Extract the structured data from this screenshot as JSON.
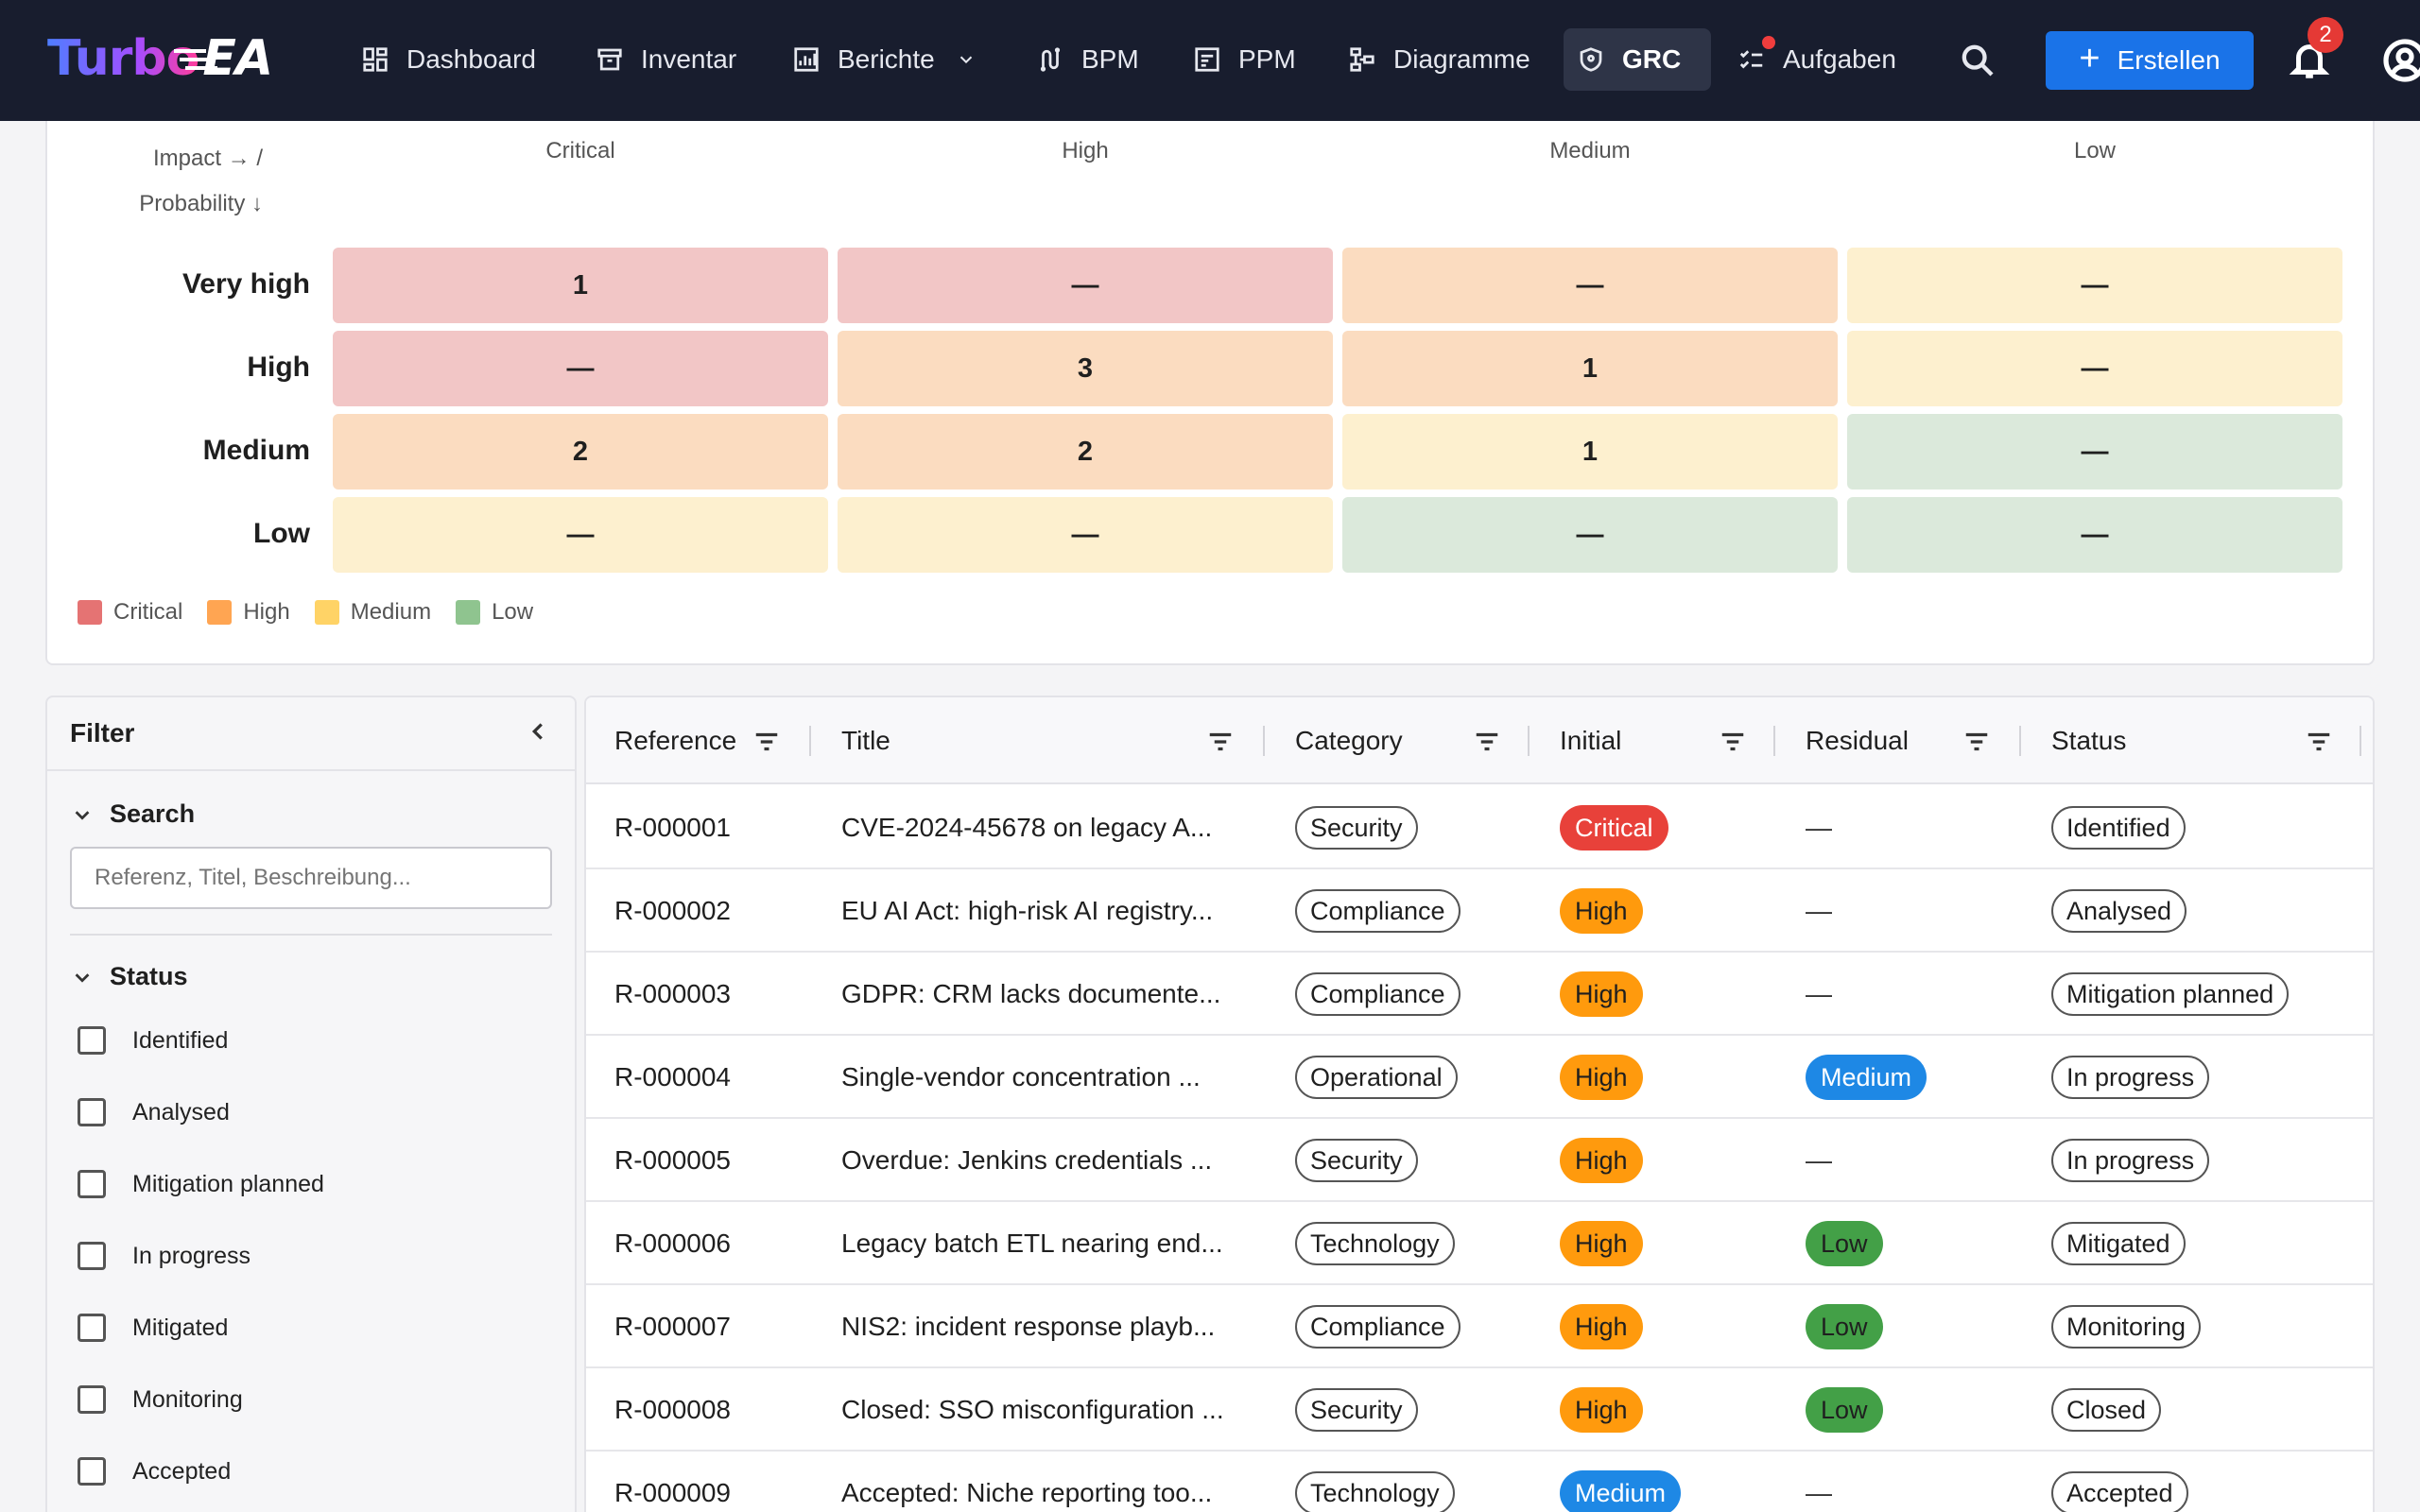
{
  "app": {
    "logo_part1": "Turbo",
    "logo_part2": "EA"
  },
  "nav": {
    "items": [
      {
        "label": "Dashboard",
        "icon": "dashboard-icon"
      },
      {
        "label": "Inventar",
        "icon": "archive-icon"
      },
      {
        "label": "Berichte",
        "icon": "report-icon"
      },
      {
        "label": "BPM",
        "icon": "process-icon"
      },
      {
        "label": "PPM",
        "icon": "portfolio-icon"
      },
      {
        "label": "Diagramme",
        "icon": "diagram-icon"
      },
      {
        "label": "GRC",
        "icon": "shield-icon"
      },
      {
        "label": "Aufgaben",
        "icon": "checklist-icon"
      }
    ],
    "create_label": "Erstellen",
    "notification_count": "2"
  },
  "heatmap": {
    "axis_impact": "Impact → /",
    "axis_probability": "Probability ↓",
    "columns": [
      "Critical",
      "High",
      "Medium",
      "Low"
    ],
    "rows": [
      {
        "label": "Very high",
        "cells": [
          "1",
          "—",
          "—",
          "—"
        ]
      },
      {
        "label": "High",
        "cells": [
          "—",
          "3",
          "1",
          "—"
        ]
      },
      {
        "label": "Medium",
        "cells": [
          "2",
          "2",
          "1",
          "—"
        ]
      },
      {
        "label": "Low",
        "cells": [
          "—",
          "—",
          "—",
          "—"
        ]
      }
    ],
    "legend": [
      {
        "label": "Critical",
        "color": "#e57373"
      },
      {
        "label": "High",
        "color": "#ffa552"
      },
      {
        "label": "Medium",
        "color": "#ffd366"
      },
      {
        "label": "Low",
        "color": "#8fc48f"
      }
    ]
  },
  "filter": {
    "title": "Filter",
    "search_section": "Search",
    "search_placeholder": "Referenz, Titel, Beschreibung...",
    "status_section": "Status",
    "status_options": [
      "Identified",
      "Analysed",
      "Mitigation planned",
      "In progress",
      "Mitigated",
      "Monitoring",
      "Accepted"
    ]
  },
  "table": {
    "columns": [
      "Reference",
      "Title",
      "Category",
      "Initial",
      "Residual",
      "Status"
    ],
    "rows": [
      {
        "ref": "R-000001",
        "title": "CVE-2024-45678 on legacy A...",
        "category": "Security",
        "initial": "Critical",
        "residual": "—",
        "status": "Identified"
      },
      {
        "ref": "R-000002",
        "title": "EU AI Act: high-risk AI registry...",
        "category": "Compliance",
        "initial": "High",
        "residual": "—",
        "status": "Analysed"
      },
      {
        "ref": "R-000003",
        "title": "GDPR: CRM lacks documente...",
        "category": "Compliance",
        "initial": "High",
        "residual": "—",
        "status": "Mitigation planned"
      },
      {
        "ref": "R-000004",
        "title": "Single-vendor concentration ...",
        "category": "Operational",
        "initial": "High",
        "residual": "Medium",
        "status": "In progress"
      },
      {
        "ref": "R-000005",
        "title": "Overdue: Jenkins credentials ...",
        "category": "Security",
        "initial": "High",
        "residual": "—",
        "status": "In progress"
      },
      {
        "ref": "R-000006",
        "title": "Legacy batch ETL nearing end...",
        "category": "Technology",
        "initial": "High",
        "residual": "Low",
        "status": "Mitigated"
      },
      {
        "ref": "R-000007",
        "title": "NIS2: incident response playb...",
        "category": "Compliance",
        "initial": "High",
        "residual": "Low",
        "status": "Monitoring"
      },
      {
        "ref": "R-000008",
        "title": "Closed: SSO misconfiguration ...",
        "category": "Security",
        "initial": "High",
        "residual": "Low",
        "status": "Closed"
      },
      {
        "ref": "R-000009",
        "title": "Accepted: Niche reporting too...",
        "category": "Technology",
        "initial": "Medium",
        "residual": "—",
        "status": "Accepted"
      }
    ]
  },
  "colors": {
    "level_critical": "#e8413a",
    "level_high": "#ff9a0d",
    "level_medium": "#1e88e5",
    "level_low": "#43a047",
    "nav_bg": "#181d2e",
    "primary": "#1a73e8"
  }
}
